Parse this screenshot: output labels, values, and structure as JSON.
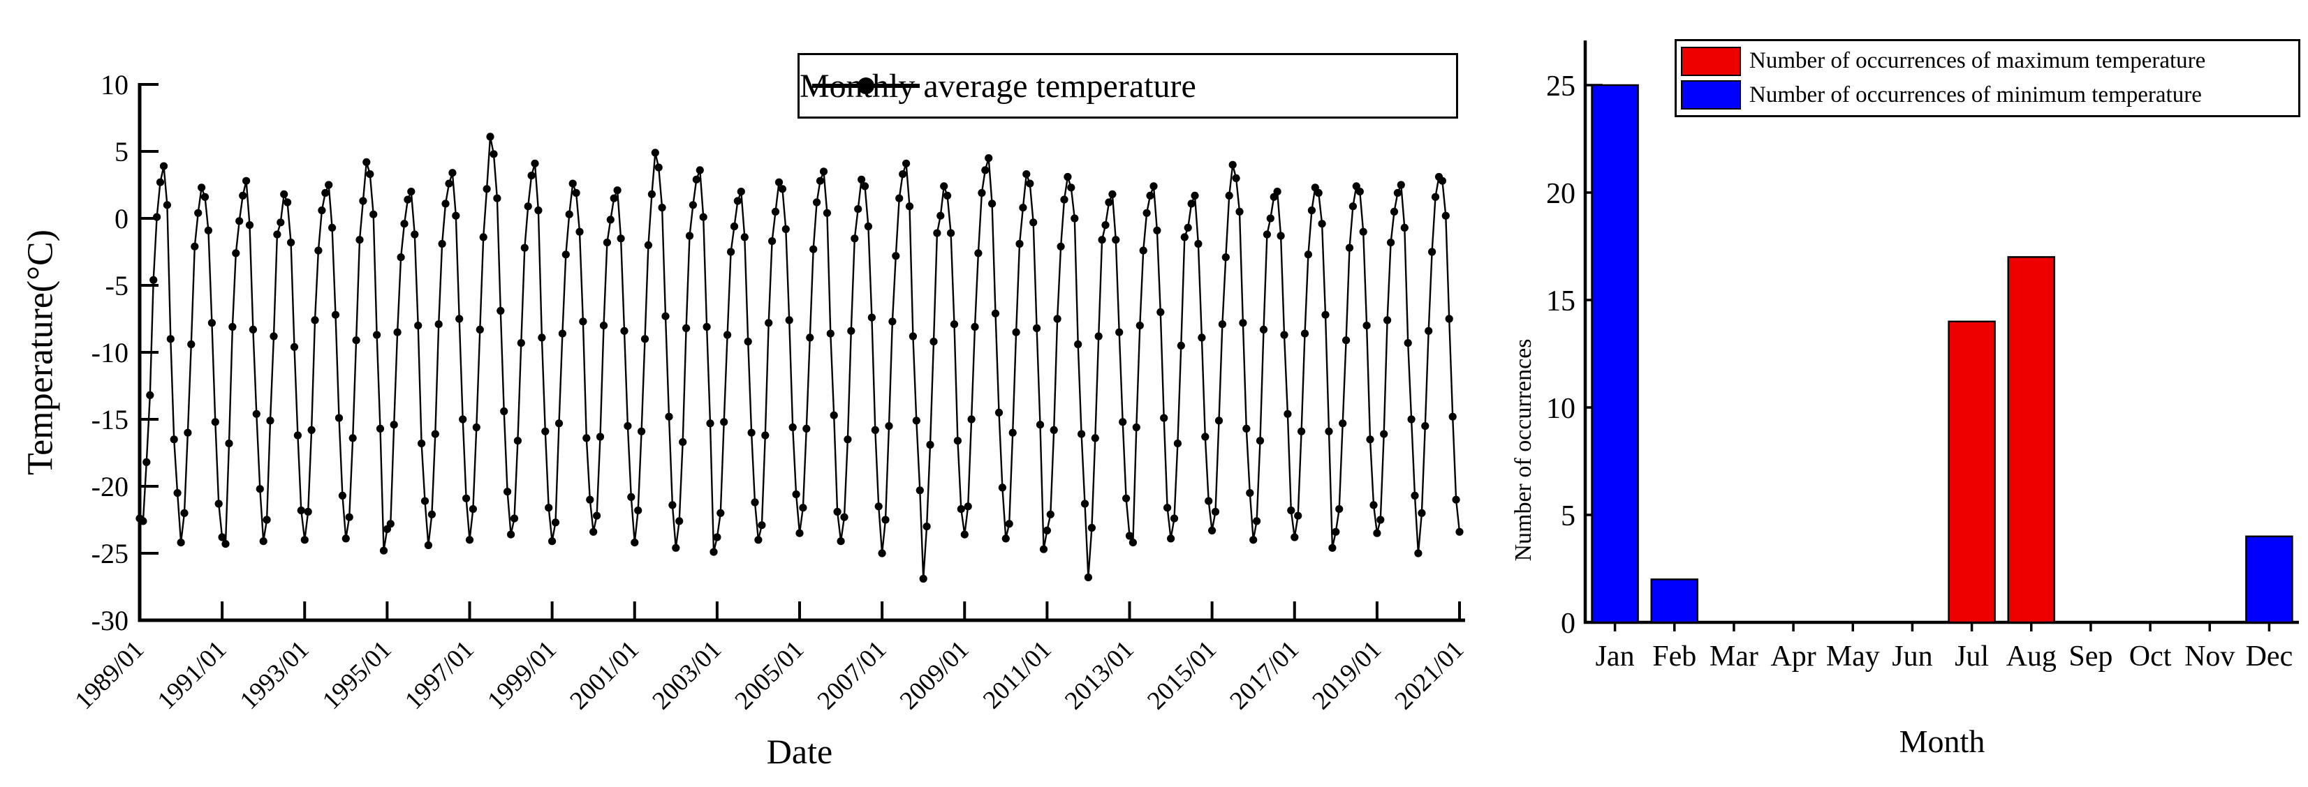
{
  "figure": {
    "background": "#ffffff",
    "text_color": "#000000",
    "description": "Two-panel figure: monthly average temperature time series and monthly counts of extreme temperature occurrences"
  },
  "chart_data": [
    {
      "type": "line",
      "title": "",
      "xlabel": "Date",
      "ylabel": "Temperature(°C)",
      "legend": "Monthly average temperature",
      "legend_position": "top-right-boxed",
      "grid": false,
      "line_color": "#000000",
      "marker": "filled-circle",
      "ylim": [
        -30,
        10
      ],
      "yticks": [
        10,
        5,
        0,
        -5,
        -10,
        -15,
        -20,
        -25,
        -30
      ],
      "xtick_labels": [
        "1989/01",
        "1991/01",
        "1993/01",
        "1995/01",
        "1997/01",
        "1999/01",
        "2001/01",
        "2003/01",
        "2005/01",
        "2007/01",
        "2009/01",
        "2011/01",
        "2013/01",
        "2015/01",
        "2017/01",
        "2019/01",
        "2021/01"
      ],
      "x_start": "1989/01",
      "x_end": "2021/01",
      "x_frequency": "monthly",
      "series": [
        {
          "name": "Monthly average temperature",
          "monthly_by_year": [
            {
              "year": 1989,
              "values": [
                -22.4,
                -22.6,
                -18.2,
                -13.2,
                -4.6,
                0.1,
                2.7,
                3.9,
                1.0,
                -9.0,
                -16.5,
                -20.5
              ]
            },
            {
              "year": 1990,
              "values": [
                -24.2,
                -22.0,
                -16.0,
                -9.4,
                -2.1,
                0.4,
                2.3,
                1.6,
                -0.9,
                -7.8,
                -15.2,
                -21.3
              ]
            },
            {
              "year": 1991,
              "values": [
                -23.8,
                -24.3,
                -16.8,
                -8.1,
                -2.6,
                -0.2,
                1.7,
                2.8,
                -0.5,
                -8.3,
                -14.6,
                -20.2
              ]
            },
            {
              "year": 1992,
              "values": [
                -24.1,
                -22.5,
                -15.1,
                -8.8,
                -1.2,
                -0.3,
                1.8,
                1.2,
                -1.8,
                -9.6,
                -16.2,
                -21.8
              ]
            },
            {
              "year": 1993,
              "values": [
                -24.0,
                -21.9,
                -15.8,
                -7.6,
                -2.4,
                0.6,
                1.9,
                2.5,
                -0.7,
                -7.2,
                -14.9,
                -20.7
              ]
            },
            {
              "year": 1994,
              "values": [
                -23.9,
                -22.3,
                -16.4,
                -9.1,
                -1.6,
                1.3,
                4.2,
                3.3,
                0.3,
                -8.7,
                -15.7,
                -24.8
              ]
            },
            {
              "year": 1995,
              "values": [
                -23.2,
                -22.8,
                -15.4,
                -8.5,
                -2.9,
                -0.4,
                1.4,
                2.0,
                -1.2,
                -8.0,
                -16.8,
                -21.1
              ]
            },
            {
              "year": 1996,
              "values": [
                -24.4,
                -22.1,
                -16.1,
                -7.9,
                -1.9,
                1.1,
                2.6,
                3.4,
                0.2,
                -7.5,
                -15.0,
                -20.9
              ]
            },
            {
              "year": 1997,
              "values": [
                -24.0,
                -21.7,
                -15.6,
                -8.3,
                -1.4,
                2.2,
                6.1,
                4.8,
                1.5,
                -6.9,
                -14.4,
                -20.4
              ]
            },
            {
              "year": 1998,
              "values": [
                -23.6,
                -22.4,
                -16.6,
                -9.3,
                -2.2,
                0.9,
                3.2,
                4.1,
                0.6,
                -8.9,
                -15.9,
                -21.6
              ]
            },
            {
              "year": 1999,
              "values": [
                -24.1,
                -22.7,
                -15.3,
                -8.6,
                -2.7,
                0.3,
                2.6,
                1.9,
                -1.0,
                -7.7,
                -16.4,
                -21.0
              ]
            },
            {
              "year": 2000,
              "values": [
                -23.4,
                -22.2,
                -16.3,
                -8.0,
                -1.8,
                -0.1,
                1.5,
                2.1,
                -1.5,
                -8.4,
                -15.5,
                -20.8
              ]
            },
            {
              "year": 2001,
              "values": [
                -24.2,
                -21.8,
                -15.9,
                -9.0,
                -2.0,
                1.8,
                4.9,
                3.8,
                0.8,
                -7.3,
                -14.8,
                -21.4
              ]
            },
            {
              "year": 2002,
              "values": [
                -24.6,
                -22.6,
                -16.7,
                -8.2,
                -1.3,
                1.0,
                2.9,
                3.6,
                0.1,
                -8.1,
                -15.3,
                -24.9
              ]
            },
            {
              "year": 2003,
              "values": [
                -23.8,
                -22.0,
                -15.2,
                -8.7,
                -2.5,
                -0.6,
                1.3,
                2.0,
                -1.4,
                -9.2,
                -16.0,
                -21.2
              ]
            },
            {
              "year": 2004,
              "values": [
                -24.0,
                -22.9,
                -16.2,
                -7.8,
                -1.7,
                0.5,
                2.7,
                2.2,
                -0.8,
                -7.6,
                -15.6,
                -20.6
              ]
            },
            {
              "year": 2005,
              "values": [
                -23.5,
                -21.6,
                -15.7,
                -8.9,
                -2.3,
                1.2,
                2.8,
                3.5,
                0.4,
                -8.6,
                -14.7,
                -21.9
              ]
            },
            {
              "year": 2006,
              "values": [
                -24.1,
                -22.3,
                -16.5,
                -8.4,
                -1.5,
                0.7,
                2.9,
                2.4,
                -0.6,
                -7.4,
                -15.8,
                -21.5
              ]
            },
            {
              "year": 2007,
              "values": [
                -25.0,
                -22.5,
                -15.5,
                -7.7,
                -2.8,
                1.5,
                3.3,
                4.1,
                0.9,
                -8.8,
                -15.1,
                -20.3
              ]
            },
            {
              "year": 2008,
              "values": [
                -26.9,
                -23.0,
                -16.9,
                -9.2,
                -1.1,
                0.2,
                2.4,
                1.7,
                -1.1,
                -7.9,
                -16.6,
                -21.7
              ]
            },
            {
              "year": 2009,
              "values": [
                -23.6,
                -21.5,
                -15.0,
                -8.1,
                -2.6,
                1.9,
                3.6,
                4.5,
                1.1,
                -7.1,
                -14.5,
                -20.1
              ]
            },
            {
              "year": 2010,
              "values": [
                -23.9,
                -22.8,
                -16.0,
                -8.5,
                -1.9,
                0.8,
                3.3,
                2.6,
                -0.3,
                -8.2,
                -15.4,
                -24.7
              ]
            },
            {
              "year": 2011,
              "values": [
                -23.3,
                -22.1,
                -15.8,
                -7.5,
                -2.1,
                1.4,
                3.1,
                2.3,
                0.0,
                -9.4,
                -16.1,
                -21.3
              ]
            },
            {
              "year": 2012,
              "values": [
                -26.8,
                -23.1,
                -16.4,
                -8.8,
                -1.6,
                -0.5,
                1.2,
                1.8,
                -1.6,
                -8.5,
                -15.2,
                -20.9
              ]
            },
            {
              "year": 2013,
              "values": [
                -23.7,
                -24.2,
                -15.6,
                -8.0,
                -2.4,
                0.4,
                1.7,
                2.4,
                -0.9,
                -7.0,
                -14.9,
                -21.6
              ]
            },
            {
              "year": 2014,
              "values": [
                -23.9,
                -22.4,
                -16.8,
                -9.5,
                -1.4,
                -0.7,
                1.1,
                1.7,
                -1.9,
                -8.9,
                -16.3,
                -21.1
              ]
            },
            {
              "year": 2015,
              "values": [
                -23.3,
                -21.9,
                -15.1,
                -7.9,
                -2.9,
                1.7,
                4.0,
                3.0,
                0.5,
                -7.8,
                -15.7,
                -20.5
              ]
            },
            {
              "year": 2016,
              "values": [
                -24.0,
                -22.6,
                -16.6,
                -8.3,
                -1.2,
                0.0,
                1.6,
                2.0,
                -1.3,
                -8.7,
                -14.6,
                -21.8
              ]
            },
            {
              "year": 2017,
              "values": [
                -23.8,
                -22.2,
                -15.9,
                -8.6,
                -2.7,
                0.6,
                2.3,
                1.9,
                -0.4,
                -7.2,
                -15.9,
                -24.6
              ]
            },
            {
              "year": 2018,
              "values": [
                -23.4,
                -21.7,
                -15.3,
                -9.1,
                -2.2,
                0.9,
                2.4,
                2.0,
                -1.0,
                -8.0,
                -16.5,
                -21.4
              ]
            },
            {
              "year": 2019,
              "values": [
                -23.5,
                -22.5,
                -16.1,
                -7.6,
                -1.8,
                0.5,
                1.9,
                2.5,
                -0.7,
                -9.3,
                -15.0,
                -20.7
              ]
            },
            {
              "year": 2020,
              "values": [
                -25.0,
                -22.0,
                -15.5,
                -8.4,
                -2.5,
                1.6,
                3.1,
                2.8,
                0.2,
                -7.5,
                -14.8,
                -21.0
              ]
            }
          ],
          "final_point": {
            "date": "2021/01",
            "value": -23.4
          }
        }
      ]
    },
    {
      "type": "bar",
      "title": "",
      "xlabel": "Month",
      "ylabel": "Number of occurrences",
      "categories": [
        "Jan",
        "Feb",
        "Mar",
        "Apr",
        "May",
        "Jun",
        "Jul",
        "Aug",
        "Sep",
        "Oct",
        "Nov",
        "Dec"
      ],
      "series": [
        {
          "name": "Number of occurrences of maximum temperature",
          "color": "#EE0000",
          "values": [
            0,
            0,
            0,
            0,
            0,
            0,
            14,
            17,
            0,
            0,
            0,
            0
          ]
        },
        {
          "name": "Number of occurrences of minimum temperature",
          "color": "#0000FF",
          "values": [
            25,
            2,
            0,
            0,
            0,
            0,
            0,
            0,
            0,
            0,
            0,
            4
          ]
        }
      ],
      "bar_outline_color": "#000000",
      "ylim": [
        0,
        25
      ],
      "yticks": [
        0,
        5,
        10,
        15,
        20,
        25
      ],
      "legend_position": "top-boxed",
      "grid": false
    }
  ]
}
